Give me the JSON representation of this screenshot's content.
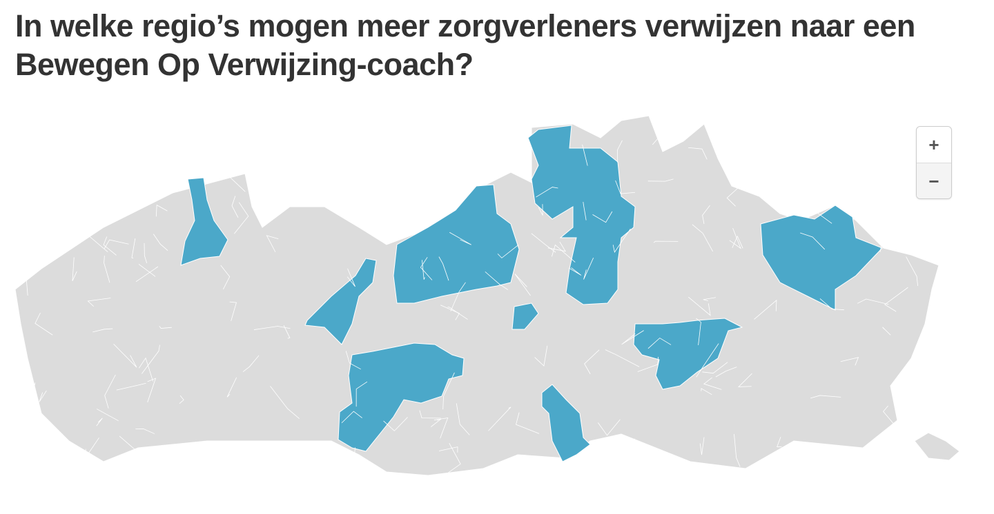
{
  "title": "In welke regio’s mogen meer zorgverleners verwijzen naar een Bewegen Op Verwijzing-coach?",
  "map": {
    "base_color": "#dcdcdc",
    "highlight_color": "#4ba8c9",
    "border_color": "#ffffff"
  },
  "zoom_controls": {
    "zoom_in": "+",
    "zoom_out": "−"
  }
}
